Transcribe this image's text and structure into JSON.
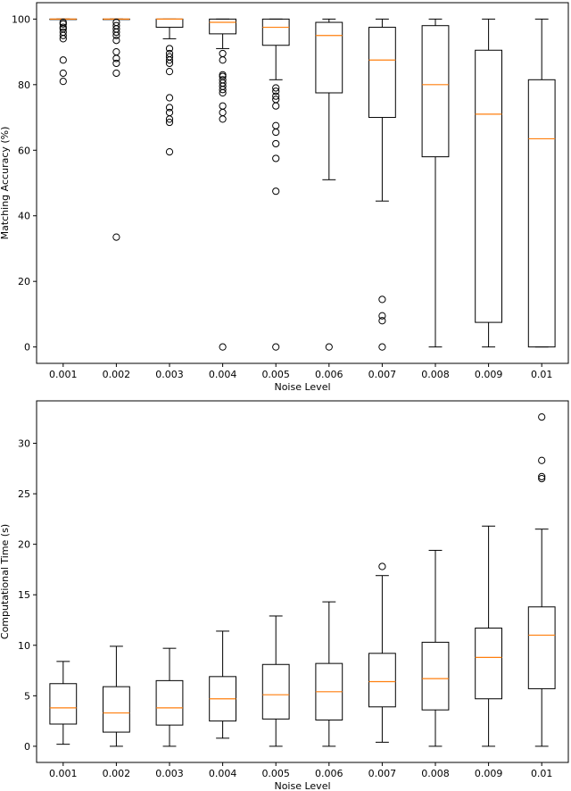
{
  "chart_data": [
    {
      "type": "boxplot",
      "title": "",
      "xlabel": "Noise Level",
      "ylabel": "Matching Accuracy (%)",
      "ylim": [
        -5,
        105
      ],
      "yticks": [
        0,
        20,
        40,
        60,
        80,
        100
      ],
      "categories": [
        "0.001",
        "0.002",
        "0.003",
        "0.004",
        "0.005",
        "0.006",
        "0.007",
        "0.008",
        "0.009",
        "0.01"
      ],
      "boxes": [
        {
          "whislo": 100,
          "q1": 100,
          "med": 100,
          "q3": 100,
          "whishi": 100,
          "fliers": [
            81,
            83.5,
            87.5,
            94,
            95,
            96,
            97,
            97.5,
            98.5,
            99
          ]
        },
        {
          "whislo": 100,
          "q1": 100,
          "med": 100,
          "q3": 100,
          "whishi": 100,
          "fliers": [
            33.5,
            83.5,
            86.5,
            88,
            90,
            93.5,
            95,
            96,
            97,
            98,
            99
          ]
        },
        {
          "whislo": 94,
          "q1": 97.5,
          "med": 100,
          "q3": 100,
          "whishi": 100,
          "fliers": [
            59.5,
            68.5,
            69.5,
            71.5,
            73,
            76,
            84,
            86.5,
            87.5,
            88.5,
            89.5,
            91
          ]
        },
        {
          "whislo": 91,
          "q1": 95.5,
          "med": 99,
          "q3": 100,
          "whishi": 100,
          "fliers": [
            0,
            69.5,
            71.5,
            73.5,
            77.5,
            78.5,
            79.5,
            80.5,
            81.5,
            82.5,
            83,
            87.5,
            89.5
          ]
        },
        {
          "whislo": 81.5,
          "q1": 92,
          "med": 97.5,
          "q3": 100,
          "whishi": 100,
          "fliers": [
            0,
            47.5,
            57.5,
            62,
            65.5,
            67.5,
            73.5,
            75.5,
            76.5,
            78,
            79
          ]
        },
        {
          "whislo": 51,
          "q1": 77.5,
          "med": 95,
          "q3": 99,
          "whishi": 100,
          "fliers": [
            0
          ]
        },
        {
          "whislo": 44.5,
          "q1": 70,
          "med": 87.5,
          "q3": 97.5,
          "whishi": 100,
          "fliers": [
            0,
            8,
            9.5,
            14.5
          ]
        },
        {
          "whislo": 0,
          "q1": 58,
          "med": 80,
          "q3": 98,
          "whishi": 100,
          "fliers": []
        },
        {
          "whislo": 0,
          "q1": 7.5,
          "med": 71,
          "q3": 90.5,
          "whishi": 100,
          "fliers": []
        },
        {
          "whislo": 0,
          "q1": 0,
          "med": 63.5,
          "q3": 81.5,
          "whishi": 100,
          "fliers": []
        }
      ]
    },
    {
      "type": "boxplot",
      "title": "",
      "xlabel": "Noise Level",
      "ylabel": "Computational Time (s)",
      "ylim": [
        -1.6,
        34.2
      ],
      "yticks": [
        0,
        5,
        10,
        15,
        20,
        25,
        30
      ],
      "categories": [
        "0.001",
        "0.002",
        "0.003",
        "0.004",
        "0.005",
        "0.006",
        "0.007",
        "0.008",
        "0.009",
        "0.01"
      ],
      "boxes": [
        {
          "whislo": 0.2,
          "q1": 2.2,
          "med": 3.8,
          "q3": 6.2,
          "whishi": 8.4,
          "fliers": []
        },
        {
          "whislo": 0,
          "q1": 1.4,
          "med": 3.3,
          "q3": 5.9,
          "whishi": 9.9,
          "fliers": []
        },
        {
          "whislo": 0,
          "q1": 2.1,
          "med": 3.8,
          "q3": 6.5,
          "whishi": 9.7,
          "fliers": []
        },
        {
          "whislo": 0.8,
          "q1": 2.5,
          "med": 4.7,
          "q3": 6.9,
          "whishi": 11.4,
          "fliers": []
        },
        {
          "whislo": 0,
          "q1": 2.7,
          "med": 5.1,
          "q3": 8.1,
          "whishi": 12.9,
          "fliers": []
        },
        {
          "whislo": 0,
          "q1": 2.6,
          "med": 5.4,
          "q3": 8.2,
          "whishi": 14.3,
          "fliers": []
        },
        {
          "whislo": 0.4,
          "q1": 3.9,
          "med": 6.4,
          "q3": 9.2,
          "whishi": 16.9,
          "fliers": [
            17.8
          ]
        },
        {
          "whislo": 0,
          "q1": 3.6,
          "med": 6.7,
          "q3": 10.3,
          "whishi": 19.4,
          "fliers": []
        },
        {
          "whislo": 0,
          "q1": 4.7,
          "med": 8.8,
          "q3": 11.7,
          "whishi": 21.8,
          "fliers": []
        },
        {
          "whislo": 0,
          "q1": 5.7,
          "med": 11.0,
          "q3": 13.8,
          "whishi": 21.5,
          "fliers": [
            26.5,
            26.7,
            28.3,
            32.6
          ]
        }
      ]
    }
  ],
  "colors": {
    "median": "#ff7f0e",
    "box": "#000000",
    "background": "#ffffff"
  }
}
